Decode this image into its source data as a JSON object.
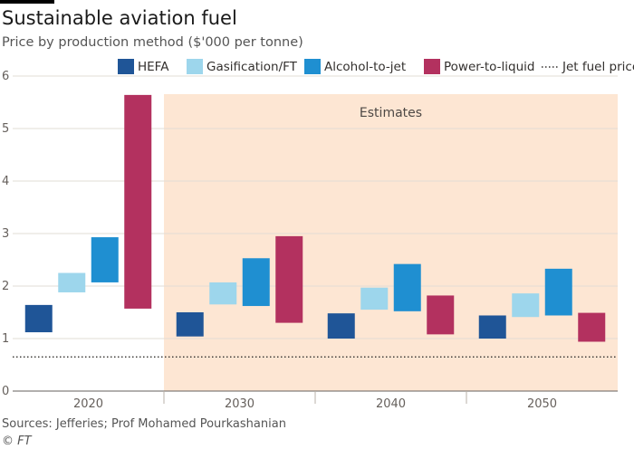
{
  "chart_data": {
    "type": "bar",
    "subtype": "floating-range",
    "title": "Sustainable aviation fuel",
    "subtitle": "Price by production method ($'000 per tonne)",
    "categories": [
      "2020",
      "2030",
      "2040",
      "2050"
    ],
    "ylim": [
      0,
      6
    ],
    "yticks": [
      "0",
      "1",
      "2",
      "3",
      "4",
      "5",
      "6"
    ],
    "grid": true,
    "legend_position": "top-right",
    "series": [
      {
        "name": "HEFA",
        "color": "#1f5597",
        "ranges": [
          [
            1.12,
            1.64
          ],
          [
            1.04,
            1.5
          ],
          [
            1.0,
            1.48
          ],
          [
            1.0,
            1.44
          ]
        ]
      },
      {
        "name": "Gasification/FT",
        "color": "#9dd6ec",
        "ranges": [
          [
            1.88,
            2.25
          ],
          [
            1.65,
            2.07
          ],
          [
            1.55,
            1.97
          ],
          [
            1.41,
            1.86
          ]
        ]
      },
      {
        "name": "Alcohol-to-jet",
        "color": "#1f8fd1",
        "ranges": [
          [
            2.07,
            2.93
          ],
          [
            1.62,
            2.53
          ],
          [
            1.52,
            2.42
          ],
          [
            1.44,
            2.33
          ]
        ]
      },
      {
        "name": "Power-to-liquid",
        "color": "#b3315f",
        "ranges": [
          [
            1.57,
            5.64
          ],
          [
            1.3,
            2.95
          ],
          [
            1.08,
            1.82
          ],
          [
            0.94,
            1.49
          ]
        ]
      }
    ],
    "reference_line": {
      "name": "Jet fuel price",
      "value": 0.65,
      "style": "dotted"
    },
    "shaded_region": {
      "label": "Estimates",
      "from_category": "2030",
      "to_category": "2050",
      "color": "#fde6d3"
    }
  },
  "source": "Sources: Jefferies; Prof Mohamed Pourkashanian",
  "credit": "© FT"
}
